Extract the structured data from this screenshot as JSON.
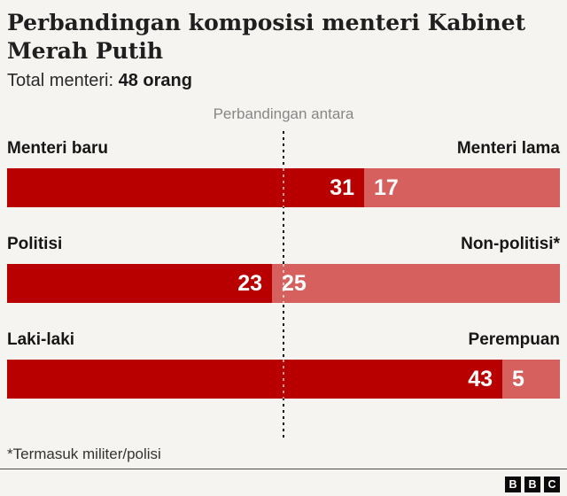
{
  "header": {
    "title_line1": "Perbandingan komposisi menteri Kabinet",
    "title_line2": "Merah Putih",
    "subtitle_label": "Total menteri: ",
    "subtitle_value": "48 orang"
  },
  "chart_data": {
    "type": "bar",
    "variant": "diverging-comparison",
    "title": "Perbandingan komposisi menteri Kabinet Merah Putih",
    "subtitle": "Total menteri: 48 orang",
    "comparison_label": "Perbandingan antara",
    "total": 48,
    "categories": [
      "Menteri baru vs Menteri lama",
      "Politisi vs Non-politisi*",
      "Laki-laki vs Perempuan"
    ],
    "rows": [
      {
        "left_label": "Menteri baru",
        "right_label": "Menteri lama",
        "left_value": 31,
        "right_value": 17
      },
      {
        "left_label": "Politisi",
        "right_label": "Non-politisi*",
        "left_value": 23,
        "right_value": 25
      },
      {
        "left_label": "Laki-laki",
        "right_label": "Perempuan",
        "left_value": 43,
        "right_value": 5
      }
    ],
    "colors": {
      "left_segment": "#b80000",
      "right_segment": "#d5605d",
      "reference_line": "#141414"
    },
    "layout": {
      "reference_line": "center dashed vertical",
      "legend": "none",
      "grid": "off"
    }
  },
  "footer": {
    "footnote": "*Termasuk militer/polisi",
    "logo_letters": [
      "B",
      "B",
      "C"
    ]
  }
}
